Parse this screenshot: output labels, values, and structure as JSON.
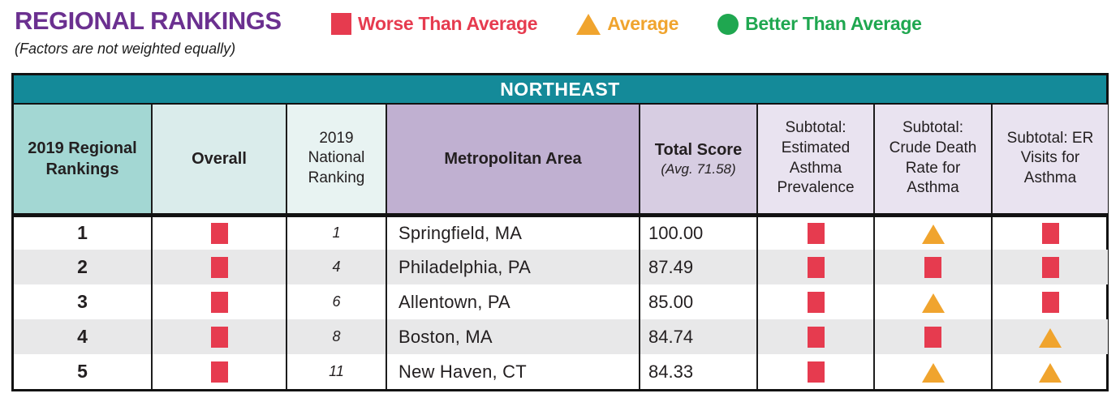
{
  "page": {
    "title": "REGIONAL RANKINGS",
    "subtitle": "(Factors are not weighted equally)"
  },
  "legend": {
    "items": [
      {
        "icon": "red-square",
        "label": "Worse Than Average"
      },
      {
        "icon": "orange-triangle",
        "label": "Average"
      },
      {
        "icon": "green-circle",
        "label": "Better Than Average"
      }
    ]
  },
  "chart_data": {
    "type": "table",
    "title": "REGIONAL RANKINGS",
    "subtitle": "(Factors are not weighted equally)",
    "region_header": "NORTHEAST",
    "columns": [
      {
        "label": "2019 Regional Rankings"
      },
      {
        "label": "Overall"
      },
      {
        "label": "2019 National Ranking"
      },
      {
        "label": "Metropolitan Area"
      },
      {
        "label": "Total Score",
        "sublabel": "(Avg. 71.58)"
      },
      {
        "label": "Subtotal: Estimated Asthma Prevalence"
      },
      {
        "label": "Subtotal: Crude Death Rate for Asthma"
      },
      {
        "label": "Subtotal: ER Visits for Asthma"
      }
    ],
    "status_legend_mapping": {
      "worse": "Worse Than Average (red square)",
      "average": "Average (orange triangle)",
      "better": "Better Than Average (green circle)"
    },
    "rows": [
      {
        "regional_ranking": "1",
        "overall": "worse",
        "national_ranking": "1",
        "metropolitan_area": "Springfield, MA",
        "total_score": "100.00",
        "subtotal_asthma_prevalence": "worse",
        "subtotal_crude_death_rate": "average",
        "subtotal_er_visits": "worse"
      },
      {
        "regional_ranking": "2",
        "overall": "worse",
        "national_ranking": "4",
        "metropolitan_area": "Philadelphia, PA",
        "total_score": "87.49",
        "subtotal_asthma_prevalence": "worse",
        "subtotal_crude_death_rate": "worse",
        "subtotal_er_visits": "worse"
      },
      {
        "regional_ranking": "3",
        "overall": "worse",
        "national_ranking": "6",
        "metropolitan_area": "Allentown, PA",
        "total_score": "85.00",
        "subtotal_asthma_prevalence": "worse",
        "subtotal_crude_death_rate": "average",
        "subtotal_er_visits": "worse"
      },
      {
        "regional_ranking": "4",
        "overall": "worse",
        "national_ranking": "8",
        "metropolitan_area": "Boston, MA",
        "total_score": "84.74",
        "subtotal_asthma_prevalence": "worse",
        "subtotal_crude_death_rate": "worse",
        "subtotal_er_visits": "average"
      },
      {
        "regional_ranking": "5",
        "overall": "worse",
        "national_ranking": "11",
        "metropolitan_area": "New Haven, CT",
        "total_score": "84.33",
        "subtotal_asthma_prevalence": "worse",
        "subtotal_crude_death_rate": "average",
        "subtotal_er_visits": "average"
      }
    ]
  },
  "colors": {
    "accent_purple": "#6b3090",
    "teal_band": "#148a99",
    "worse_red": "#e63b4f",
    "average_orange": "#f0a42e",
    "better_green": "#1fa750"
  }
}
